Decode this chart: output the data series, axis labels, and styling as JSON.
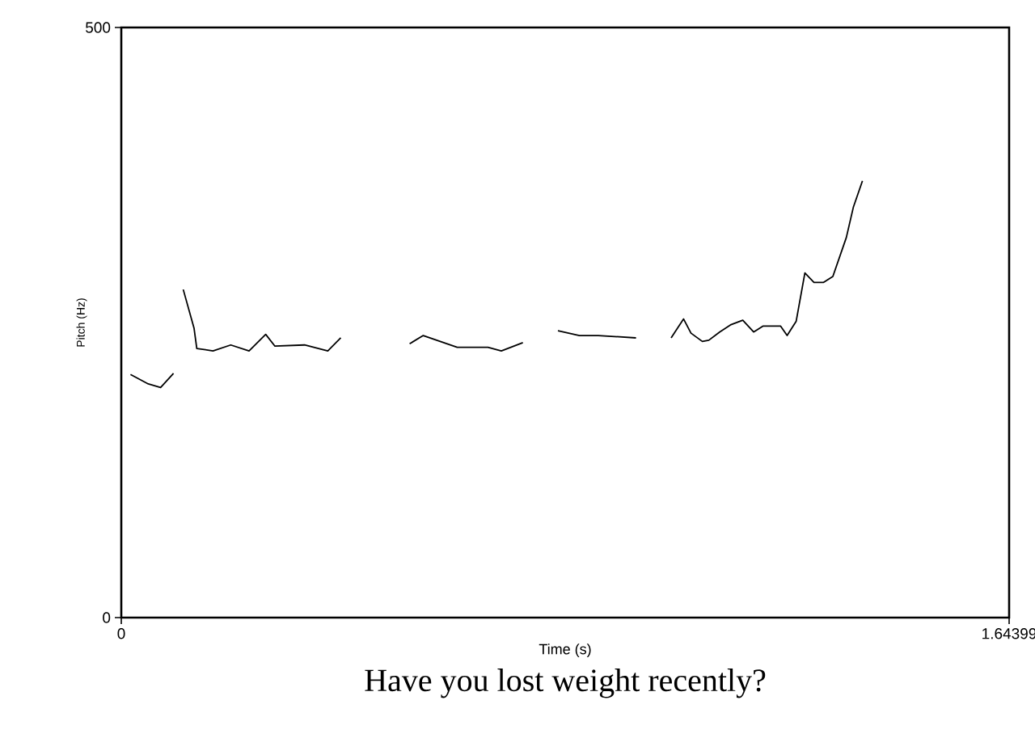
{
  "chart_data": {
    "type": "line",
    "title": "Have you lost weight recently?",
    "xlabel": "Time (s)",
    "ylabel": "Pitch (Hz)",
    "xlim": [
      0,
      1.64399
    ],
    "ylim": [
      0,
      500
    ],
    "xticks": [
      0,
      1.64399
    ],
    "yticks": [
      0,
      500
    ],
    "color": "#000000",
    "x": [
      0.0171,
      0.05,
      0.0728,
      0.0967,
      0.105,
      0.1147,
      0.1348,
      0.1398,
      0.1698,
      0.2027,
      0.2366,
      0.2674,
      0.2845,
      0.3393,
      0.3824,
      0.4064,
      0.47,
      0.5339,
      0.5591,
      0.622,
      0.6789,
      0.7037,
      0.7436,
      0.776,
      0.8085,
      0.8483,
      0.8834,
      0.9531,
      0.985,
      1.0181,
      1.0412,
      1.0549,
      1.0759,
      1.0879,
      1.108,
      1.128,
      1.1508,
      1.1709,
      1.188,
      1.2209,
      1.2329,
      1.2496,
      1.2658,
      1.2826,
      1.3005,
      1.3176,
      1.3425,
      1.3557,
      1.3724
    ],
    "values": [
      206,
      198,
      195,
      207,
      null,
      278,
      245,
      228,
      226,
      231,
      226,
      240,
      230,
      231,
      226,
      237,
      null,
      232,
      239,
      229,
      229,
      226,
      233,
      null,
      243,
      239,
      239,
      237,
      null,
      237,
      253,
      241,
      234,
      235,
      242,
      248,
      252,
      242,
      247,
      247,
      239,
      251,
      292,
      284,
      284,
      289,
      322,
      348,
      370
    ]
  }
}
